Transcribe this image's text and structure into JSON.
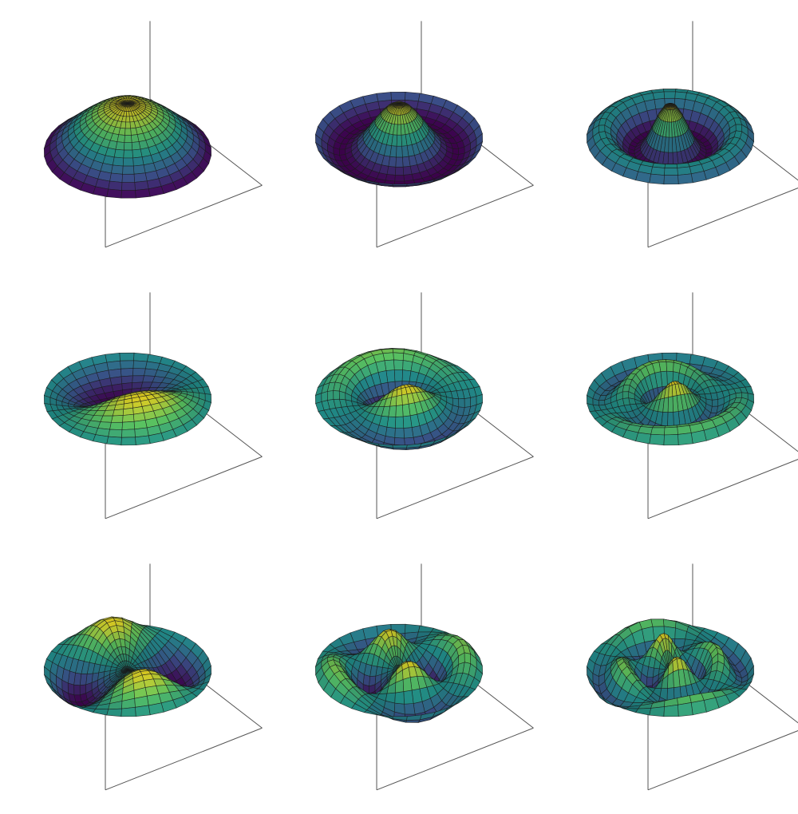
{
  "figure": {
    "type": "3d-surface-grid",
    "rows": 3,
    "cols": 3,
    "colormap": [
      "#440154",
      "#3b528b",
      "#21918c",
      "#5ec962",
      "#fde725"
    ],
    "gridline_color": "#1a1a1a",
    "axes_box_color": "#555555",
    "panels": [
      {
        "id": "r1c1",
        "angular_mode_m": 0,
        "radial_mode_n": 1,
        "profile": "central-dome"
      },
      {
        "id": "r1c2",
        "angular_mode_m": 0,
        "radial_mode_n": 2,
        "profile": "central-peak-one-ring"
      },
      {
        "id": "r1c3",
        "angular_mode_m": 0,
        "radial_mode_n": 3,
        "profile": "central-peak-two-rings"
      },
      {
        "id": "r2c1",
        "angular_mode_m": 1,
        "radial_mode_n": 1,
        "profile": "tilted-dome"
      },
      {
        "id": "r2c2",
        "angular_mode_m": 1,
        "radial_mode_n": 2,
        "profile": "offset-peak-one-ring"
      },
      {
        "id": "r2c3",
        "angular_mode_m": 1,
        "radial_mode_n": 3,
        "profile": "offset-peak-two-rings"
      },
      {
        "id": "r3c1",
        "angular_mode_m": 2,
        "radial_mode_n": 1,
        "profile": "two-lobes"
      },
      {
        "id": "r3c2",
        "angular_mode_m": 2,
        "radial_mode_n": 2,
        "profile": "lobes-with-ring"
      },
      {
        "id": "r3c3",
        "angular_mode_m": 2,
        "radial_mode_n": 3,
        "profile": "lobes-with-two-rings"
      }
    ]
  }
}
